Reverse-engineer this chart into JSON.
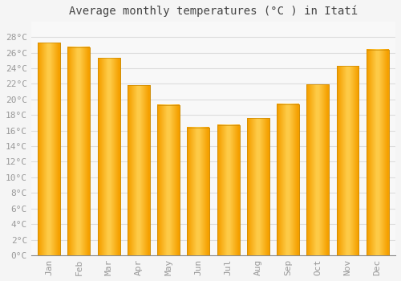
{
  "title": "Average monthly temperatures (°C ) in Itatí",
  "months": [
    "Jan",
    "Feb",
    "Mar",
    "Apr",
    "May",
    "Jun",
    "Jul",
    "Aug",
    "Sep",
    "Oct",
    "Nov",
    "Dec"
  ],
  "values": [
    27.3,
    26.7,
    25.3,
    21.8,
    19.3,
    16.4,
    16.7,
    17.6,
    19.4,
    21.9,
    24.3,
    26.4
  ],
  "ylim": [
    0,
    30
  ],
  "yticks": [
    0,
    2,
    4,
    6,
    8,
    10,
    12,
    14,
    16,
    18,
    20,
    22,
    24,
    26,
    28
  ],
  "background_color": "#F5F5F5",
  "plot_bg_color": "#F8F8F8",
  "grid_color": "#DDDDDD",
  "title_fontsize": 10,
  "tick_fontsize": 8,
  "tick_color": "#999999",
  "bar_color_center": "#FFD050",
  "bar_color_edge": "#F5A000",
  "bar_width": 0.75,
  "title_color": "#444444"
}
